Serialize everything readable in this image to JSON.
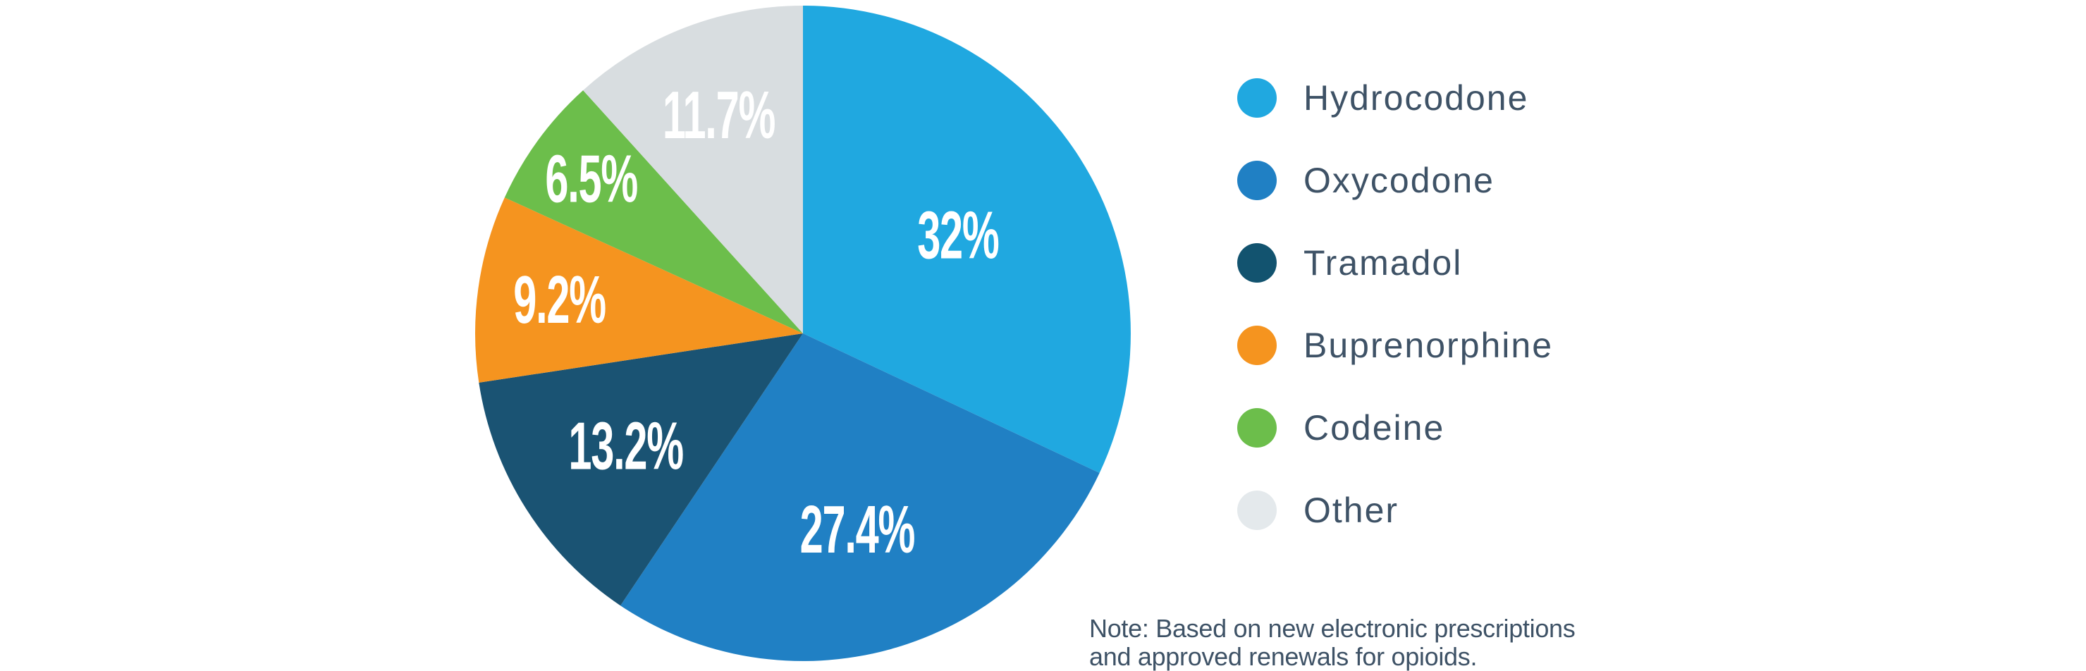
{
  "chart_data": {
    "type": "pie",
    "title": "",
    "direction": "clockwise",
    "start_angle_deg": 0,
    "legend_position": "right",
    "label_color": "#FFFFFF",
    "slices": [
      {
        "name": "Hydrocodone",
        "value": 32,
        "label": "32%",
        "color": "#20A8E0",
        "legend_color": "#20A8E0",
        "label_r": 0.56
      },
      {
        "name": "Oxycodone",
        "value": 27.4,
        "label": "27.4%",
        "color": "#2080C4",
        "legend_color": "#2080C4",
        "label_r": 0.62
      },
      {
        "name": "Tramadol",
        "value": 13.2,
        "label": "13.2%",
        "color": "#1A5373",
        "legend_color": "#12536F",
        "label_r": 0.64
      },
      {
        "name": "Buprenorphine",
        "value": 9.2,
        "label": "9.2%",
        "color": "#F5941F",
        "legend_color": "#F5941F",
        "label_r": 0.75
      },
      {
        "name": "Codeine",
        "value": 6.5,
        "label": "6.5%",
        "color": "#6CBE4B",
        "legend_color": "#6CBE4B",
        "label_r": 0.8
      },
      {
        "name": "Other",
        "value": 11.7,
        "label": "11.7%",
        "color": "#D8DDE0",
        "legend_color": "#E4E9EC",
        "label_r": 0.715
      }
    ]
  },
  "note": {
    "line1": "Note: Based on new electronic prescriptions",
    "line2": "and approved renewals for opioids."
  },
  "colors": {
    "text": "#3E5266",
    "background": "#FFFFFF"
  }
}
